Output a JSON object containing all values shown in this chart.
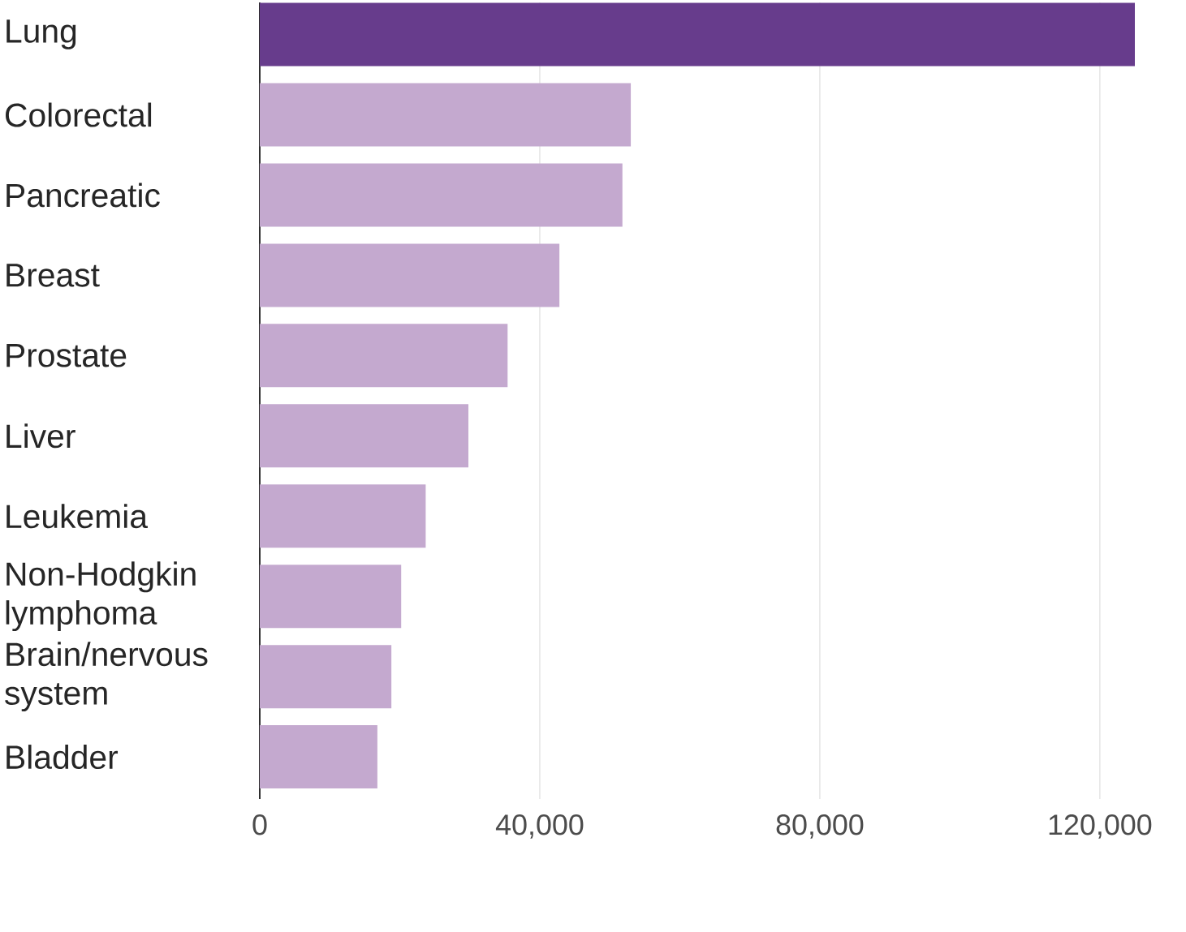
{
  "chart_data": {
    "type": "bar",
    "orientation": "horizontal",
    "categories": [
      "Lung",
      "Colorectal",
      "Pancreatic",
      "Breast",
      "Prostate",
      "Liver",
      "Leukemia",
      "Non-Hodgkin lymphoma",
      "Brain/nervous system",
      "Bladder"
    ],
    "values": [
      125000,
      53000,
      51800,
      42800,
      35400,
      29800,
      23700,
      20200,
      18800,
      16800
    ],
    "colors": [
      "#673c8c",
      "#c4a9cf",
      "#c4a9cf",
      "#c4a9cf",
      "#c4a9cf",
      "#c4a9cf",
      "#c4a9cf",
      "#c4a9cf",
      "#c4a9cf",
      "#c4a9cf"
    ],
    "xlim": [
      0,
      125000
    ],
    "xticks": [
      0,
      {
        "value": 40000,
        "label": "40,000"
      },
      {
        "value": 80000,
        "label": "80,000"
      },
      {
        "value": 120000,
        "label": "120,000"
      }
    ],
    "grid": "x"
  }
}
